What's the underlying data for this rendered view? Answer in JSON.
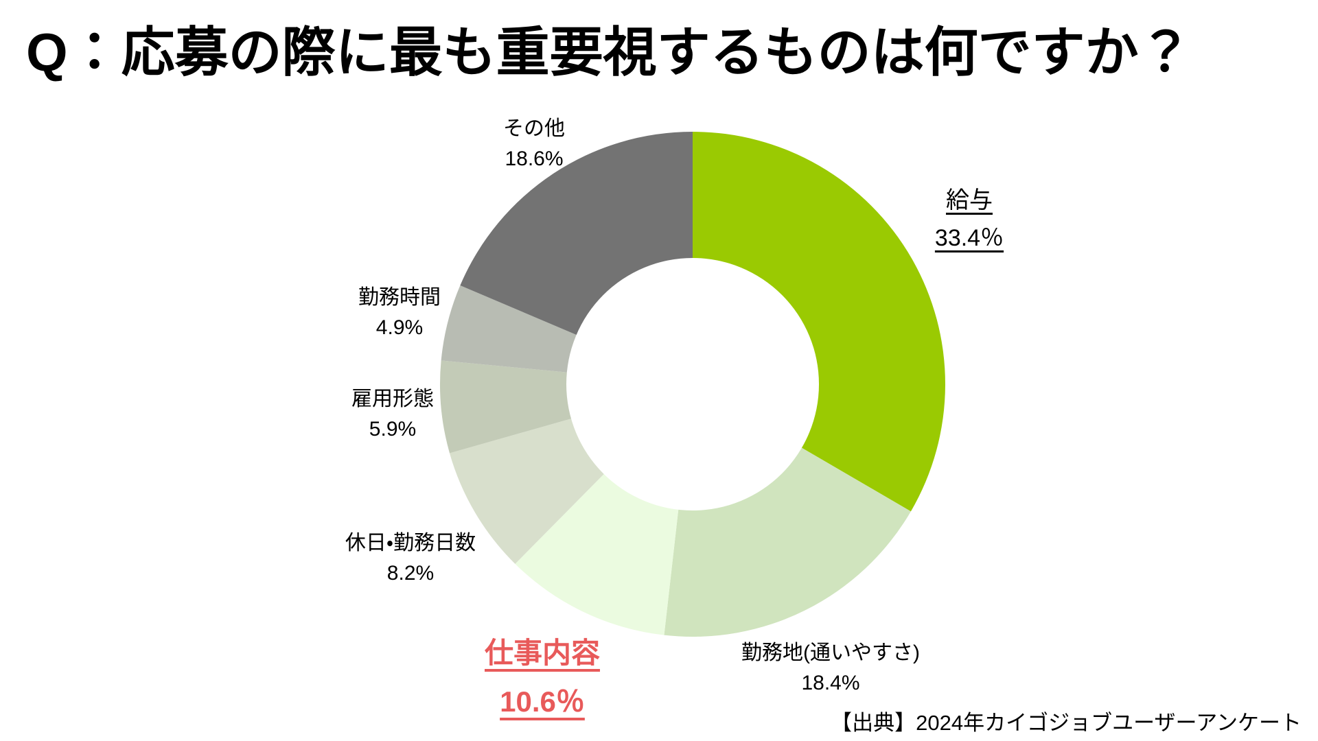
{
  "title": "Q：応募の際に最も重要視するものは何ですか？",
  "source": "【出典】2024年カイゴジョブユーザーアンケート",
  "colors": {
    "background": "#FFFFFF",
    "text": "#000000",
    "accent_green": "#9ACA02",
    "accent_red": "#E85A5A"
  },
  "chart_data": {
    "type": "pie",
    "subtype": "donut",
    "title": "応募の際に最も重要視するもの",
    "unit": "%",
    "start_angle_deg": 0,
    "direction": "clockwise",
    "donut_hole_ratio": 0.5,
    "legend_position": "none",
    "segments": [
      {
        "label": "給与",
        "value": 33.4,
        "display": "33.4％",
        "color": "#9ACA02",
        "emphasis": "underline"
      },
      {
        "label": "勤務地(通いやすさ)",
        "value": 18.4,
        "display": "18.4%",
        "color": "#D0E4BE",
        "emphasis": "none"
      },
      {
        "label": "仕事内容",
        "value": 10.6,
        "display": "10.6％",
        "color": "#EBFBE0",
        "emphasis": "red-bold-underline"
      },
      {
        "label": "休日・勤務日数",
        "value": 8.2,
        "display": "8.2%",
        "color": "#D8DFCC",
        "emphasis": "none"
      },
      {
        "label": "雇用形態",
        "value": 5.9,
        "display": "5.9%",
        "color": "#C3CBB7",
        "emphasis": "none"
      },
      {
        "label": "勤務時間",
        "value": 4.9,
        "display": "4.9%",
        "color": "#B8BCB3",
        "emphasis": "none"
      },
      {
        "label": "その他",
        "value": 18.6,
        "display": "18.6%",
        "color": "#737373",
        "emphasis": "none"
      }
    ]
  }
}
